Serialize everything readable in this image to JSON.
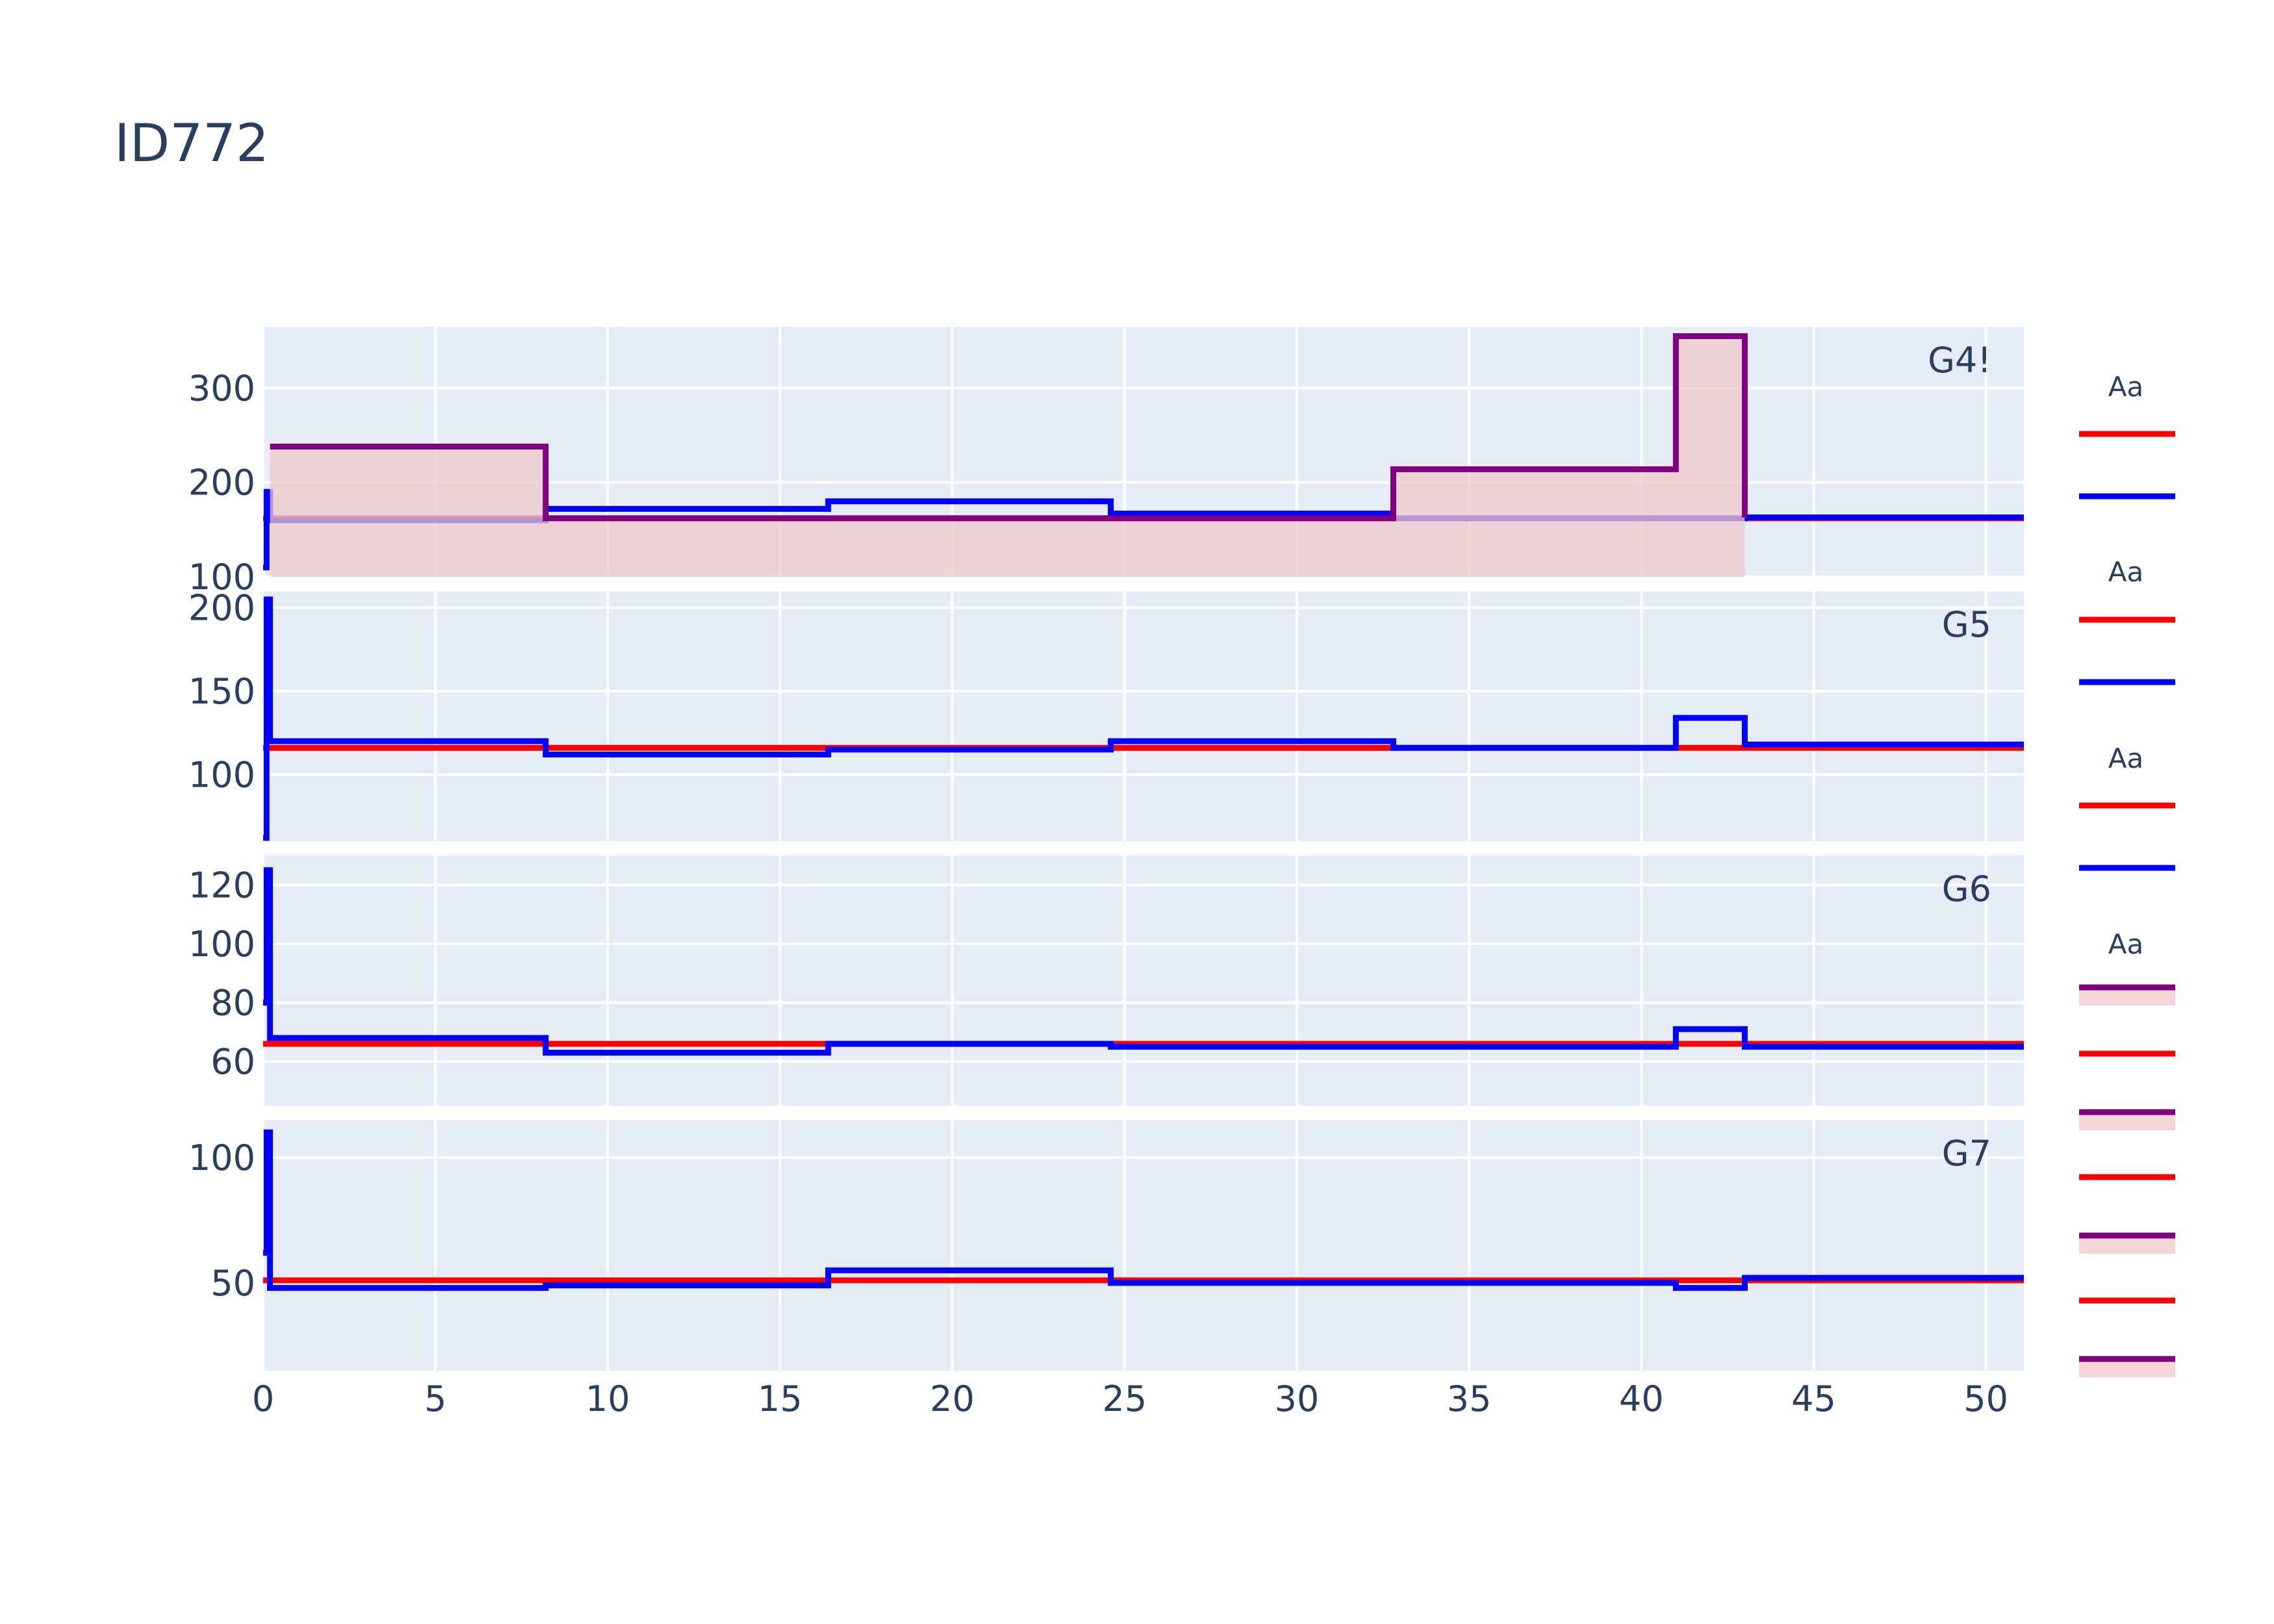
{
  "chart_data": {
    "type": "line",
    "title": "ID772",
    "line_shape": "step",
    "x_ticks": [
      0,
      5,
      10,
      15,
      20,
      25,
      30,
      35,
      40,
      45,
      50
    ],
    "x_range": [
      0,
      51.1
    ],
    "grid": true,
    "legend_placement": "right",
    "colors": {
      "background": "#e5ecf6",
      "grid": "#ffffff",
      "red": "#ff0000",
      "blue": "#0000ff",
      "purple": "#800080",
      "fill": "#f0c8c8"
    },
    "panels": [
      {
        "label": "G4!",
        "y_range": [
          100,
          365
        ],
        "y_ticks": [
          100,
          200,
          300
        ],
        "series": [
          {
            "color": "red",
            "x": [
              0,
              51.1
            ],
            "y": [
              162,
              162
            ]
          },
          {
            "color": "blue",
            "x": [
              0,
              0.1,
              0.2,
              8.2,
              16.4,
              24.6,
              32.8,
              41,
              43,
              51.1
            ],
            "y": [
              110,
              190,
              160,
              172,
              180,
              167,
              162,
              162,
              163,
              163
            ]
          },
          {
            "color": "purple",
            "fill": true,
            "x": [
              0.2,
              8.2,
              32.8,
              41,
              43
            ],
            "y": [
              238,
              162,
              214,
              355,
              163
            ]
          }
        ]
      },
      {
        "label": "G5",
        "y_range": [
          60,
          210
        ],
        "y_ticks": [
          100,
          150,
          200
        ],
        "series": [
          {
            "color": "red",
            "x": [
              0,
              51.1
            ],
            "y": [
              116,
              116
            ]
          },
          {
            "color": "blue",
            "x": [
              0,
              0.1,
              0.2,
              8.2,
              16.4,
              24.6,
              32.8,
              41,
              43,
              51.1
            ],
            "y": [
              62,
              205,
              120,
              112,
              115,
              120,
              116,
              134,
              118,
              118
            ]
          }
        ]
      },
      {
        "label": "G6",
        "y_range": [
          45,
          130
        ],
        "y_ticks": [
          60,
          80,
          100,
          120
        ],
        "series": [
          {
            "color": "red",
            "x": [
              0,
              51.1
            ],
            "y": [
              66,
              66
            ]
          },
          {
            "color": "blue",
            "x": [
              0,
              0.1,
              0.2,
              8.2,
              16.4,
              24.6,
              32.8,
              41,
              43,
              51.1
            ],
            "y": [
              80,
              125,
              68,
              63,
              66,
              65,
              65,
              71,
              65,
              65
            ]
          }
        ]
      },
      {
        "label": "G7",
        "y_range": [
          15,
          115
        ],
        "y_ticks": [
          50,
          100
        ],
        "series": [
          {
            "color": "red",
            "x": [
              0,
              51.1
            ],
            "y": [
              51,
              51
            ]
          },
          {
            "color": "blue",
            "x": [
              0,
              0.1,
              0.2,
              8.2,
              16.4,
              24.6,
              32.8,
              41,
              43,
              51.1
            ],
            "y": [
              62,
              110,
              48,
              49,
              55,
              50,
              50,
              48,
              52,
              52
            ]
          }
        ]
      }
    ],
    "legend_groups": [
      {
        "title": "Aa",
        "items": [
          {
            "color": "red"
          },
          {
            "color": "blue"
          }
        ]
      },
      {
        "title": "Aa",
        "items": [
          {
            "color": "red"
          },
          {
            "color": "blue"
          }
        ]
      },
      {
        "title": "Aa",
        "items": [
          {
            "color": "red"
          },
          {
            "color": "blue"
          }
        ]
      },
      {
        "title": "Aa",
        "items": [
          {
            "color": "purple",
            "fill": true
          },
          {
            "color": "red"
          },
          {
            "color": "purple",
            "fill": true
          },
          {
            "color": "red"
          },
          {
            "color": "purple",
            "fill": true
          },
          {
            "color": "red"
          },
          {
            "color": "purple",
            "fill": true
          }
        ]
      }
    ]
  }
}
